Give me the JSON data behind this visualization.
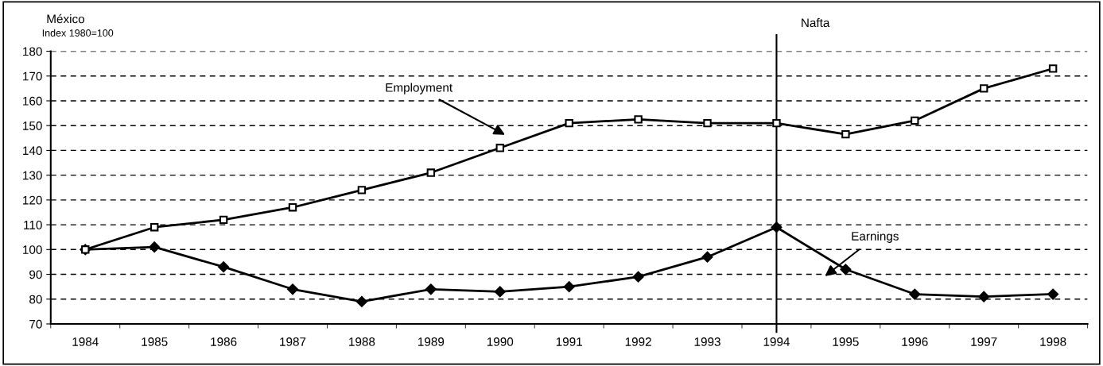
{
  "chart_data": {
    "type": "line",
    "title": "México",
    "subtitle": "Index 1980=100",
    "categories": [
      "1984",
      "1985",
      "1986",
      "1987",
      "1988",
      "1989",
      "1990",
      "1991",
      "1992",
      "1993",
      "1994",
      "1995",
      "1996",
      "1997",
      "1998"
    ],
    "series": [
      {
        "color": "#000000",
        "marker": "square",
        "values": [
          100,
          109,
          112,
          117,
          124,
          131,
          141,
          151,
          152.5,
          151,
          151,
          146.5,
          152,
          165,
          173
        ]
      },
      {
        "color": "#000000",
        "marker": "diamond",
        "values": [
          100,
          101,
          93,
          84,
          79,
          84,
          83,
          85,
          89,
          97,
          109,
          92,
          82,
          81,
          82
        ]
      }
    ],
    "ylim": [
      70,
      180
    ],
    "yticks": [
      70,
      80,
      90,
      100,
      110,
      120,
      130,
      140,
      150,
      160,
      170,
      180
    ],
    "grid": "y",
    "legend": false,
    "ref_lines": [
      {
        "axis": "x",
        "value": "1994",
        "label": "Nafta"
      }
    ],
    "annotations": [
      "Employment",
      "Earnings"
    ]
  }
}
